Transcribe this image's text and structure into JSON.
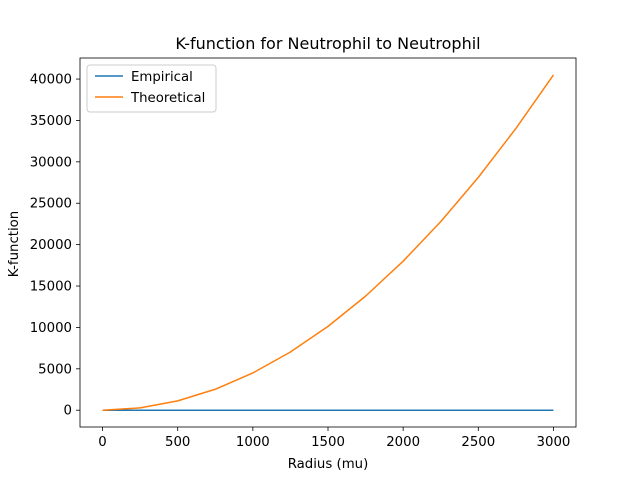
{
  "chart_data": {
    "type": "line",
    "title": "K-function for Neutrophil to Neutrophil",
    "xlabel": "Radius (mu)",
    "ylabel": "K-function",
    "xlim": [
      -150,
      3150
    ],
    "ylim": [
      -2028,
      42544
    ],
    "x_ticks": [
      0,
      500,
      1000,
      1500,
      2000,
      2500,
      3000
    ],
    "y_ticks": [
      0,
      5000,
      10000,
      15000,
      20000,
      25000,
      30000,
      35000,
      40000
    ],
    "grid": false,
    "legend_position": "upper-left",
    "series": [
      {
        "name": "Empirical",
        "color": "#1f77b4",
        "x": [
          0,
          250,
          500,
          750,
          1000,
          1250,
          1500,
          1750,
          2000,
          2250,
          2500,
          2750,
          3000
        ],
        "y": [
          0,
          0,
          0,
          0,
          0,
          0,
          0,
          0,
          0,
          0,
          0,
          0,
          0
        ]
      },
      {
        "name": "Theoretical",
        "color": "#ff7f0e",
        "x": [
          0,
          250,
          500,
          750,
          1000,
          1250,
          1500,
          1750,
          2000,
          2250,
          2500,
          2750,
          3000
        ],
        "y": [
          0,
          281,
          1125,
          2531,
          4500,
          7031,
          10125,
          13781,
          18000,
          22781,
          28125,
          34031,
          40500
        ]
      }
    ]
  }
}
